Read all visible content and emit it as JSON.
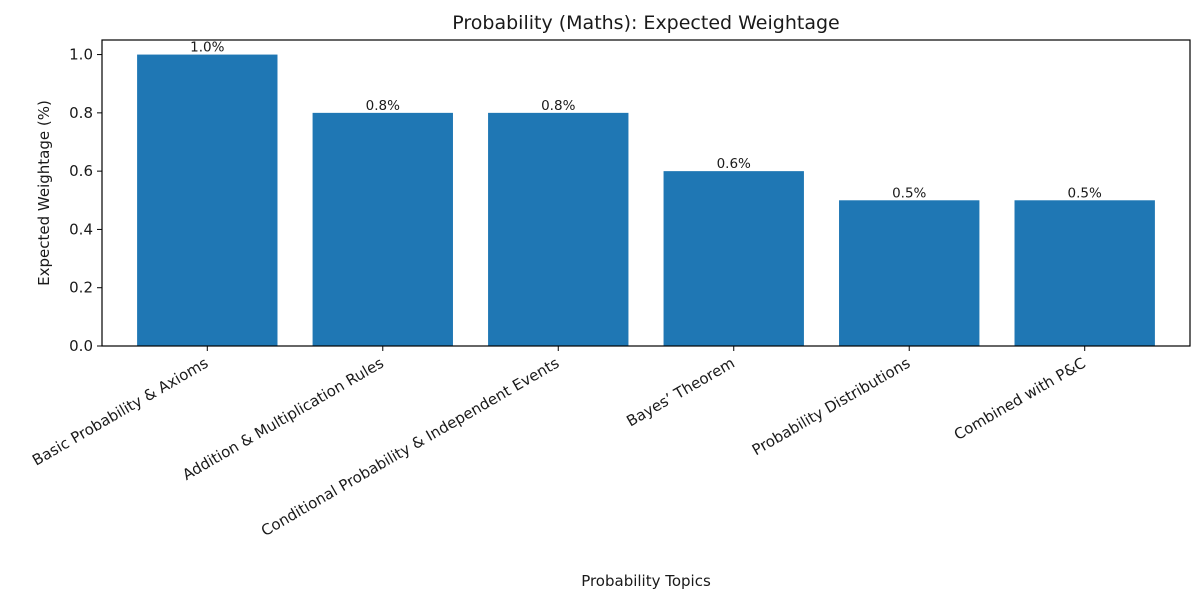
{
  "chart_data": {
    "type": "bar",
    "title": "Probability (Maths): Expected Weightage",
    "xlabel": "Probability Topics",
    "ylabel": "Expected Weightage (%)",
    "categories": [
      "Basic Probability & Axioms",
      "Addition & Multiplication Rules",
      "Conditional Probability & Independent Events",
      "Bayes’ Theorem",
      "Probability Distributions",
      "Combined with P&C"
    ],
    "values": [
      1.0,
      0.8,
      0.8,
      0.6,
      0.5,
      0.5
    ],
    "bar_labels": [
      "1.0%",
      "0.8%",
      "0.8%",
      "0.6%",
      "0.5%",
      "0.5%"
    ],
    "yticks": [
      0.0,
      0.2,
      0.4,
      0.6,
      0.8,
      1.0
    ],
    "ytick_labels": [
      "0.0",
      "0.2",
      "0.4",
      "0.6",
      "0.8",
      "1.0"
    ],
    "ylim": [
      0,
      1.05
    ],
    "grid": false,
    "legend": null,
    "bar_color": "#1f77b4",
    "xtick_rotation": 30
  }
}
